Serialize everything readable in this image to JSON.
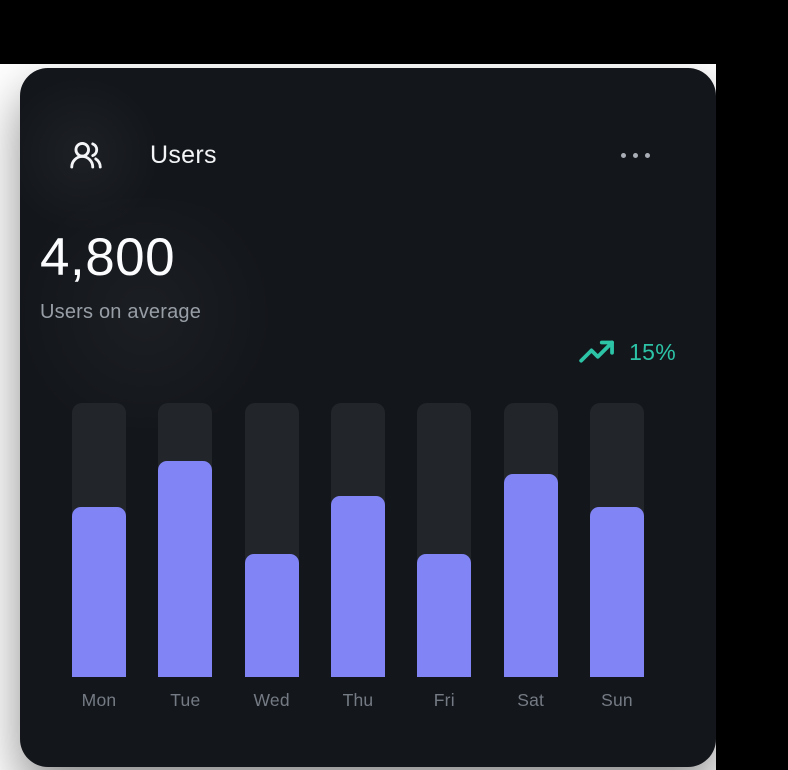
{
  "card": {
    "title": "Users",
    "stat_value": "4,800",
    "stat_label": "Users on average",
    "trend": {
      "value": "15%",
      "direction": "up"
    },
    "menu": "ellipsis"
  },
  "chart_data": {
    "type": "bar",
    "categories": [
      "Mon",
      "Tue",
      "Wed",
      "Thu",
      "Fri",
      "Sat",
      "Sun"
    ],
    "values": [
      62,
      79,
      45,
      66,
      45,
      74,
      62
    ],
    "ylim": [
      0,
      100
    ],
    "title": "",
    "xlabel": "",
    "ylabel": "",
    "legend": "none",
    "grid": false,
    "note": "values are bar fill percentages of the full track height"
  },
  "colors": {
    "card_bg": "#13161b",
    "page_bg_top_right": "#000000",
    "page_bg_left": "#ffffff",
    "bar_color": "#8184f5",
    "track_bg": "#22262b",
    "accent_positive": "#2cc3a6",
    "title_text": "#f2f4f6",
    "muted_text": "#989ea6",
    "axis_text": "#757b84"
  },
  "icons": {
    "header": "users-icon",
    "trend": "trending-up-icon",
    "menu": "ellipsis-icon"
  }
}
